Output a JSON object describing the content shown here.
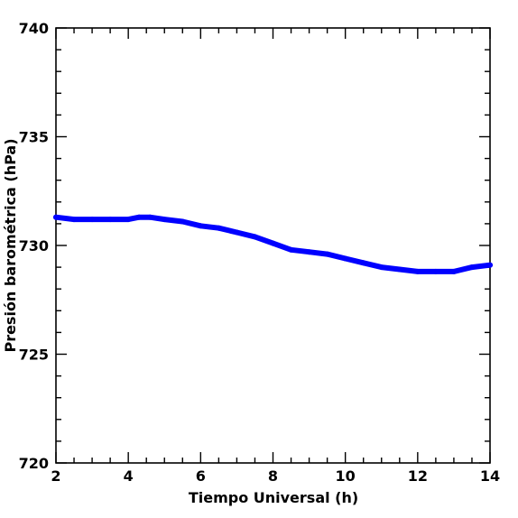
{
  "chart_data": {
    "type": "line",
    "title": "",
    "xlabel": "Tiempo Universal (h)",
    "ylabel": "Presión barométrica (hPa)",
    "xlim": [
      2,
      14
    ],
    "ylim": [
      720,
      740
    ],
    "x_ticks": [
      2,
      4,
      6,
      8,
      10,
      12,
      14
    ],
    "y_ticks": [
      720,
      725,
      730,
      735,
      740
    ],
    "x_minor_step": 0.5,
    "y_minor_step": 1,
    "grid": false,
    "legend": "none",
    "series": [
      {
        "color": "#0000ff",
        "x": [
          2.0,
          2.5,
          3.0,
          3.5,
          4.0,
          4.3,
          4.6,
          5.0,
          5.5,
          6.0,
          6.5,
          7.0,
          7.5,
          8.0,
          8.5,
          9.0,
          9.5,
          10.0,
          10.5,
          11.0,
          11.5,
          12.0,
          12.5,
          13.0,
          13.5,
          14.0
        ],
        "y": [
          731.3,
          731.2,
          731.2,
          731.2,
          731.2,
          731.3,
          731.3,
          731.2,
          731.1,
          730.9,
          730.8,
          730.6,
          730.4,
          730.1,
          729.8,
          729.7,
          729.6,
          729.4,
          729.2,
          729.0,
          728.9,
          728.8,
          728.8,
          728.8,
          729.0,
          729.1
        ]
      }
    ]
  }
}
